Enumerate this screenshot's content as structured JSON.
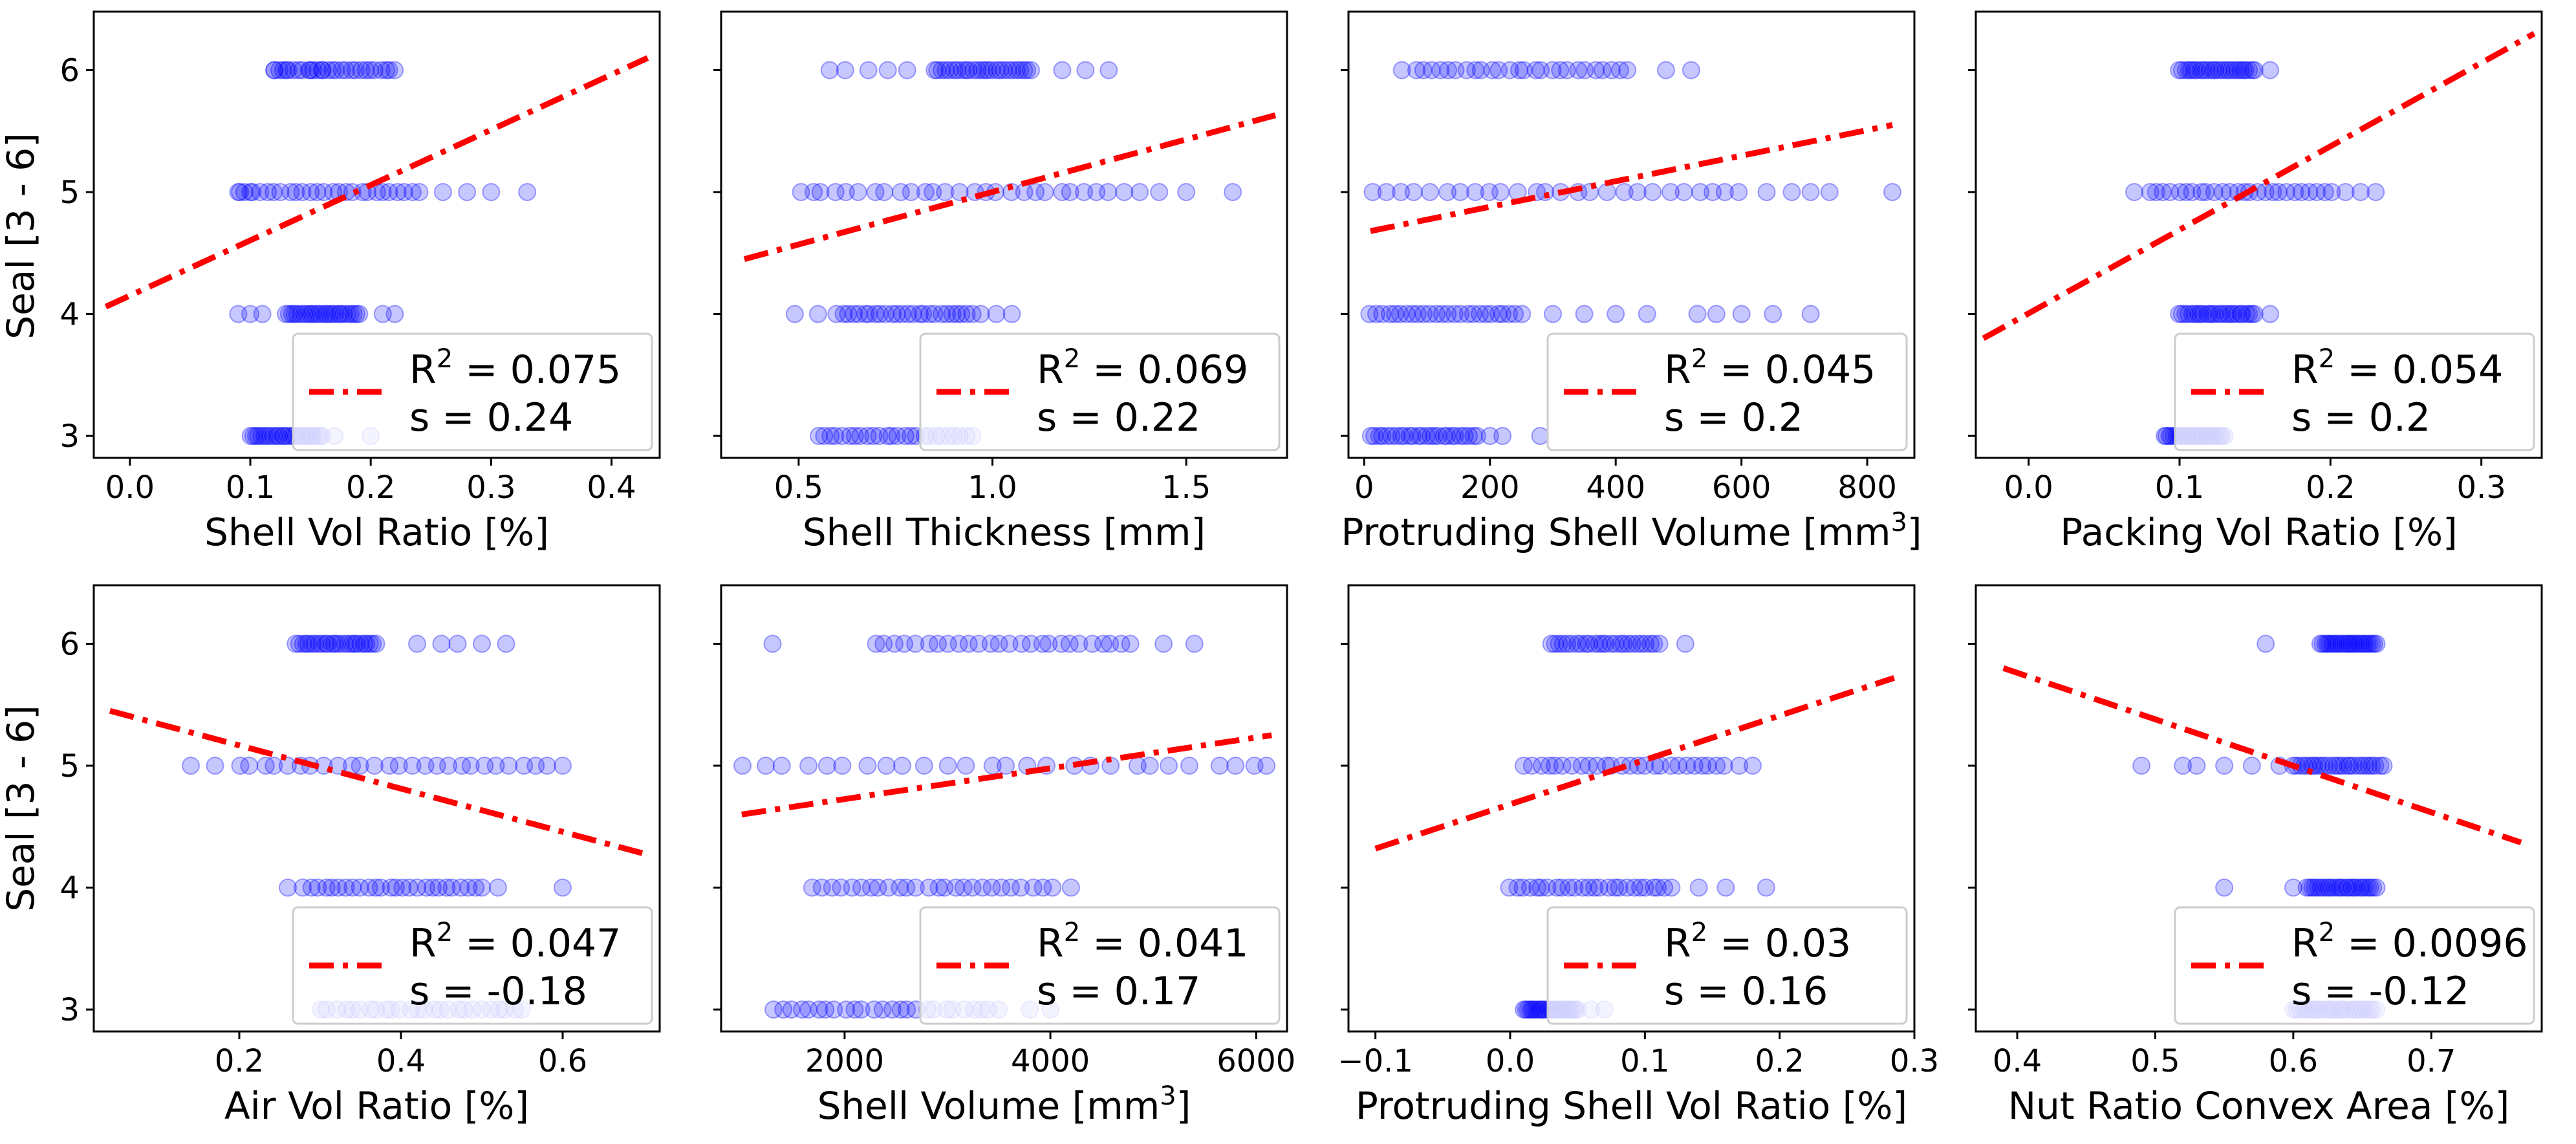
{
  "figure": {
    "ylabel": "Seal [3 - 6]",
    "y_ticks": [
      "3",
      "4",
      "5",
      "6"
    ],
    "legend_r_prefix": "R",
    "legend_r_sup": "2",
    "legend_s_prefix": "s   ="
  },
  "colors": {
    "points": "#0000ff",
    "fit": "#ff0000"
  },
  "chart_data": [
    {
      "type": "scatter",
      "xlabel": "Shell Vol Ratio [%]",
      "xlim": [
        -0.03,
        0.44
      ],
      "xticks": [
        0.0,
        0.1,
        0.2,
        0.3,
        0.4
      ],
      "xtick_labels": [
        "0.0",
        "0.1",
        "0.2",
        "0.3",
        "0.4"
      ],
      "ylim": [
        2.82,
        6.48
      ],
      "fit": {
        "x": [
          -0.02,
          0.43
        ],
        "y": [
          4.06,
          6.1
        ]
      },
      "legend": {
        "r2": "= 0.075",
        "s": "0.24"
      },
      "points": [
        {
          "y": 6,
          "xmin": 0.12,
          "xmax": 0.22,
          "sparse": [
            0.12,
            0.13,
            0.15,
            0.16
          ]
        },
        {
          "y": 5,
          "xmin": 0.09,
          "xmax": 0.24,
          "sparse": [
            0.09,
            0.1,
            0.26,
            0.28,
            0.3,
            0.33
          ]
        },
        {
          "y": 4,
          "xmin": 0.13,
          "xmax": 0.19,
          "sparse": [
            0.09,
            0.1,
            0.11,
            0.21,
            0.22
          ]
        },
        {
          "y": 3,
          "xmin": 0.1,
          "xmax": 0.16,
          "sparse": [
            0.17,
            0.2
          ]
        }
      ]
    },
    {
      "type": "scatter",
      "xlabel": "Shell Thickness [mm]",
      "xlim": [
        0.3,
        1.76
      ],
      "xticks": [
        0.5,
        1.0,
        1.5
      ],
      "xtick_labels": [
        "0.5",
        "1.0",
        "1.5"
      ],
      "ylim": [
        2.82,
        6.48
      ],
      "fit": {
        "x": [
          0.36,
          1.73
        ],
        "y": [
          4.45,
          5.63
        ]
      },
      "legend": {
        "r2": "= 0.069",
        "s": "0.22"
      },
      "points": [
        {
          "y": 6,
          "xmin": 0.85,
          "xmax": 1.1,
          "sparse": [
            0.58,
            0.62,
            0.68,
            0.73,
            0.78,
            1.18,
            1.24,
            1.3
          ]
        },
        {
          "y": 5,
          "xmin": 0.5,
          "xmax": 1.3,
          "sparse": [
            1.34,
            1.38,
            1.43,
            1.5,
            1.62
          ]
        },
        {
          "y": 4,
          "xmin": 0.6,
          "xmax": 0.95,
          "sparse": [
            0.49,
            0.55,
            0.97,
            1.01,
            1.05
          ]
        },
        {
          "y": 3,
          "xmin": 0.55,
          "xmax": 0.95,
          "sparse": []
        }
      ]
    },
    {
      "type": "scatter",
      "xlabel": "Protruding Shell Volume [mm",
      "xlabel_sup": "3",
      "xlabel_after": "]",
      "xlim": [
        -25,
        875
      ],
      "xticks": [
        0,
        200,
        400,
        600,
        800
      ],
      "xtick_labels": [
        "0",
        "200",
        "400",
        "600",
        "800"
      ],
      "ylim": [
        2.82,
        6.48
      ],
      "fit": {
        "x": [
          10,
          840
        ],
        "y": [
          4.68,
          5.55
        ]
      },
      "legend": {
        "r2": "= 0.045",
        "s": "0.2"
      },
      "points": [
        {
          "y": 6,
          "xmin": 80,
          "xmax": 420,
          "sparse": [
            60,
            480,
            520
          ]
        },
        {
          "y": 5,
          "xmin": 10,
          "xmax": 600,
          "sparse": [
            640,
            680,
            710,
            740,
            840
          ]
        },
        {
          "y": 4,
          "xmin": 10,
          "xmax": 250,
          "sparse": [
            300,
            350,
            400,
            450,
            530,
            560,
            600,
            650,
            710
          ]
        },
        {
          "y": 3,
          "xmin": 10,
          "xmax": 180,
          "sparse": [
            200,
            220,
            280
          ]
        }
      ]
    },
    {
      "type": "scatter",
      "xlabel": "Packing Vol Ratio [%]",
      "xlim": [
        -0.035,
        0.34
      ],
      "xticks": [
        0.0,
        0.1,
        0.2,
        0.3
      ],
      "xtick_labels": [
        "0.0",
        "0.1",
        "0.2",
        "0.3"
      ],
      "ylim": [
        2.82,
        6.48
      ],
      "fit": {
        "x": [
          -0.03,
          0.335
        ],
        "y": [
          3.8,
          6.3
        ]
      },
      "legend": {
        "r2": "= 0.054",
        "s": "0.2"
      },
      "points": [
        {
          "y": 6,
          "xmin": 0.1,
          "xmax": 0.15,
          "sparse": [
            0.16
          ]
        },
        {
          "y": 5,
          "xmin": 0.08,
          "xmax": 0.2,
          "sparse": [
            0.07,
            0.21,
            0.22,
            0.23
          ]
        },
        {
          "y": 4,
          "xmin": 0.1,
          "xmax": 0.15,
          "sparse": [
            0.16
          ]
        },
        {
          "y": 3,
          "xmin": 0.09,
          "xmax": 0.13,
          "sparse": []
        }
      ]
    },
    {
      "type": "scatter",
      "xlabel": "Air Vol Ratio [%]",
      "xlim": [
        0.02,
        0.72
      ],
      "xticks": [
        0.2,
        0.4,
        0.6
      ],
      "xtick_labels": [
        "0.2",
        "0.4",
        "0.6"
      ],
      "ylim": [
        2.82,
        6.48
      ],
      "fit": {
        "x": [
          0.04,
          0.7
        ],
        "y": [
          5.45,
          4.28
        ]
      },
      "legend": {
        "r2": "= 0.047",
        "s": "-0.18"
      },
      "points": [
        {
          "y": 6,
          "xmin": 0.27,
          "xmax": 0.37,
          "sparse": [
            0.42,
            0.45,
            0.47,
            0.5,
            0.53
          ]
        },
        {
          "y": 5,
          "xmin": 0.2,
          "xmax": 0.58,
          "sparse": [
            0.14,
            0.17,
            0.6
          ]
        },
        {
          "y": 4,
          "xmin": 0.28,
          "xmax": 0.5,
          "sparse": [
            0.26,
            0.52,
            0.6
          ]
        },
        {
          "y": 3,
          "xmin": 0.3,
          "xmax": 0.55,
          "sparse": []
        }
      ]
    },
    {
      "type": "scatter",
      "xlabel": "Shell Volume [mm",
      "xlabel_sup": "3",
      "xlabel_after": "]",
      "xlim": [
        800,
        6300
      ],
      "xticks": [
        2000,
        4000,
        6000
      ],
      "xtick_labels": [
        "2000",
        "4000",
        "6000"
      ],
      "ylim": [
        2.82,
        6.48
      ],
      "fit": {
        "x": [
          1000,
          6150
        ],
        "y": [
          4.6,
          5.25
        ]
      },
      "legend": {
        "r2": "= 0.041",
        "s": "0.17"
      },
      "points": [
        {
          "y": 6,
          "xmin": 2300,
          "xmax": 4800,
          "sparse": [
            1300,
            5100,
            5400
          ]
        },
        {
          "y": 5,
          "xmin": 1000,
          "xmax": 6000,
          "sparse": [
            6100
          ]
        },
        {
          "y": 4,
          "xmin": 1700,
          "xmax": 4000,
          "sparse": [
            4200
          ]
        },
        {
          "y": 3,
          "xmin": 1300,
          "xmax": 3500,
          "sparse": [
            3800,
            4000
          ]
        }
      ]
    },
    {
      "type": "scatter",
      "xlabel": "Protruding Shell Vol Ratio [%]",
      "xlim": [
        -0.12,
        0.3
      ],
      "xticks": [
        -0.1,
        0.0,
        0.1,
        0.2,
        0.3
      ],
      "xtick_labels": [
        "−0.1",
        "0.0",
        "0.1",
        "0.2",
        "0.3"
      ],
      "ylim": [
        2.82,
        6.48
      ],
      "fit": {
        "x": [
          -0.1,
          0.285
        ],
        "y": [
          4.32,
          5.72
        ]
      },
      "legend": {
        "r2": "= 0.03",
        "s": "0.16"
      },
      "points": [
        {
          "y": 6,
          "xmin": 0.03,
          "xmax": 0.11,
          "sparse": [
            0.13
          ]
        },
        {
          "y": 5,
          "xmin": 0.01,
          "xmax": 0.16,
          "sparse": [
            0.17,
            0.18
          ]
        },
        {
          "y": 4,
          "xmin": 0.0,
          "xmax": 0.12,
          "sparse": [
            0.14,
            0.16,
            0.19
          ]
        },
        {
          "y": 3,
          "xmin": 0.01,
          "xmax": 0.05,
          "sparse": [
            0.06,
            0.07
          ]
        }
      ]
    },
    {
      "type": "scatter",
      "xlabel": "Nut Ratio Convex Area [%]",
      "xlim": [
        0.37,
        0.78
      ],
      "xticks": [
        0.4,
        0.5,
        0.6,
        0.7
      ],
      "xtick_labels": [
        "0.4",
        "0.5",
        "0.6",
        "0.7"
      ],
      "ylim": [
        2.82,
        6.48
      ],
      "fit": {
        "x": [
          0.39,
          0.765
        ],
        "y": [
          5.8,
          4.37
        ]
      },
      "legend": {
        "r2": "= 0.0096",
        "s": "-0.12"
      },
      "points": [
        {
          "y": 6,
          "xmin": 0.62,
          "xmax": 0.66,
          "sparse": [
            0.58
          ]
        },
        {
          "y": 5,
          "xmin": 0.6,
          "xmax": 0.665,
          "sparse": [
            0.49,
            0.52,
            0.53,
            0.55,
            0.57,
            0.59
          ]
        },
        {
          "y": 4,
          "xmin": 0.61,
          "xmax": 0.66,
          "sparse": [
            0.55,
            0.6
          ]
        },
        {
          "y": 3,
          "xmin": 0.6,
          "xmax": 0.66,
          "sparse": []
        }
      ]
    }
  ]
}
